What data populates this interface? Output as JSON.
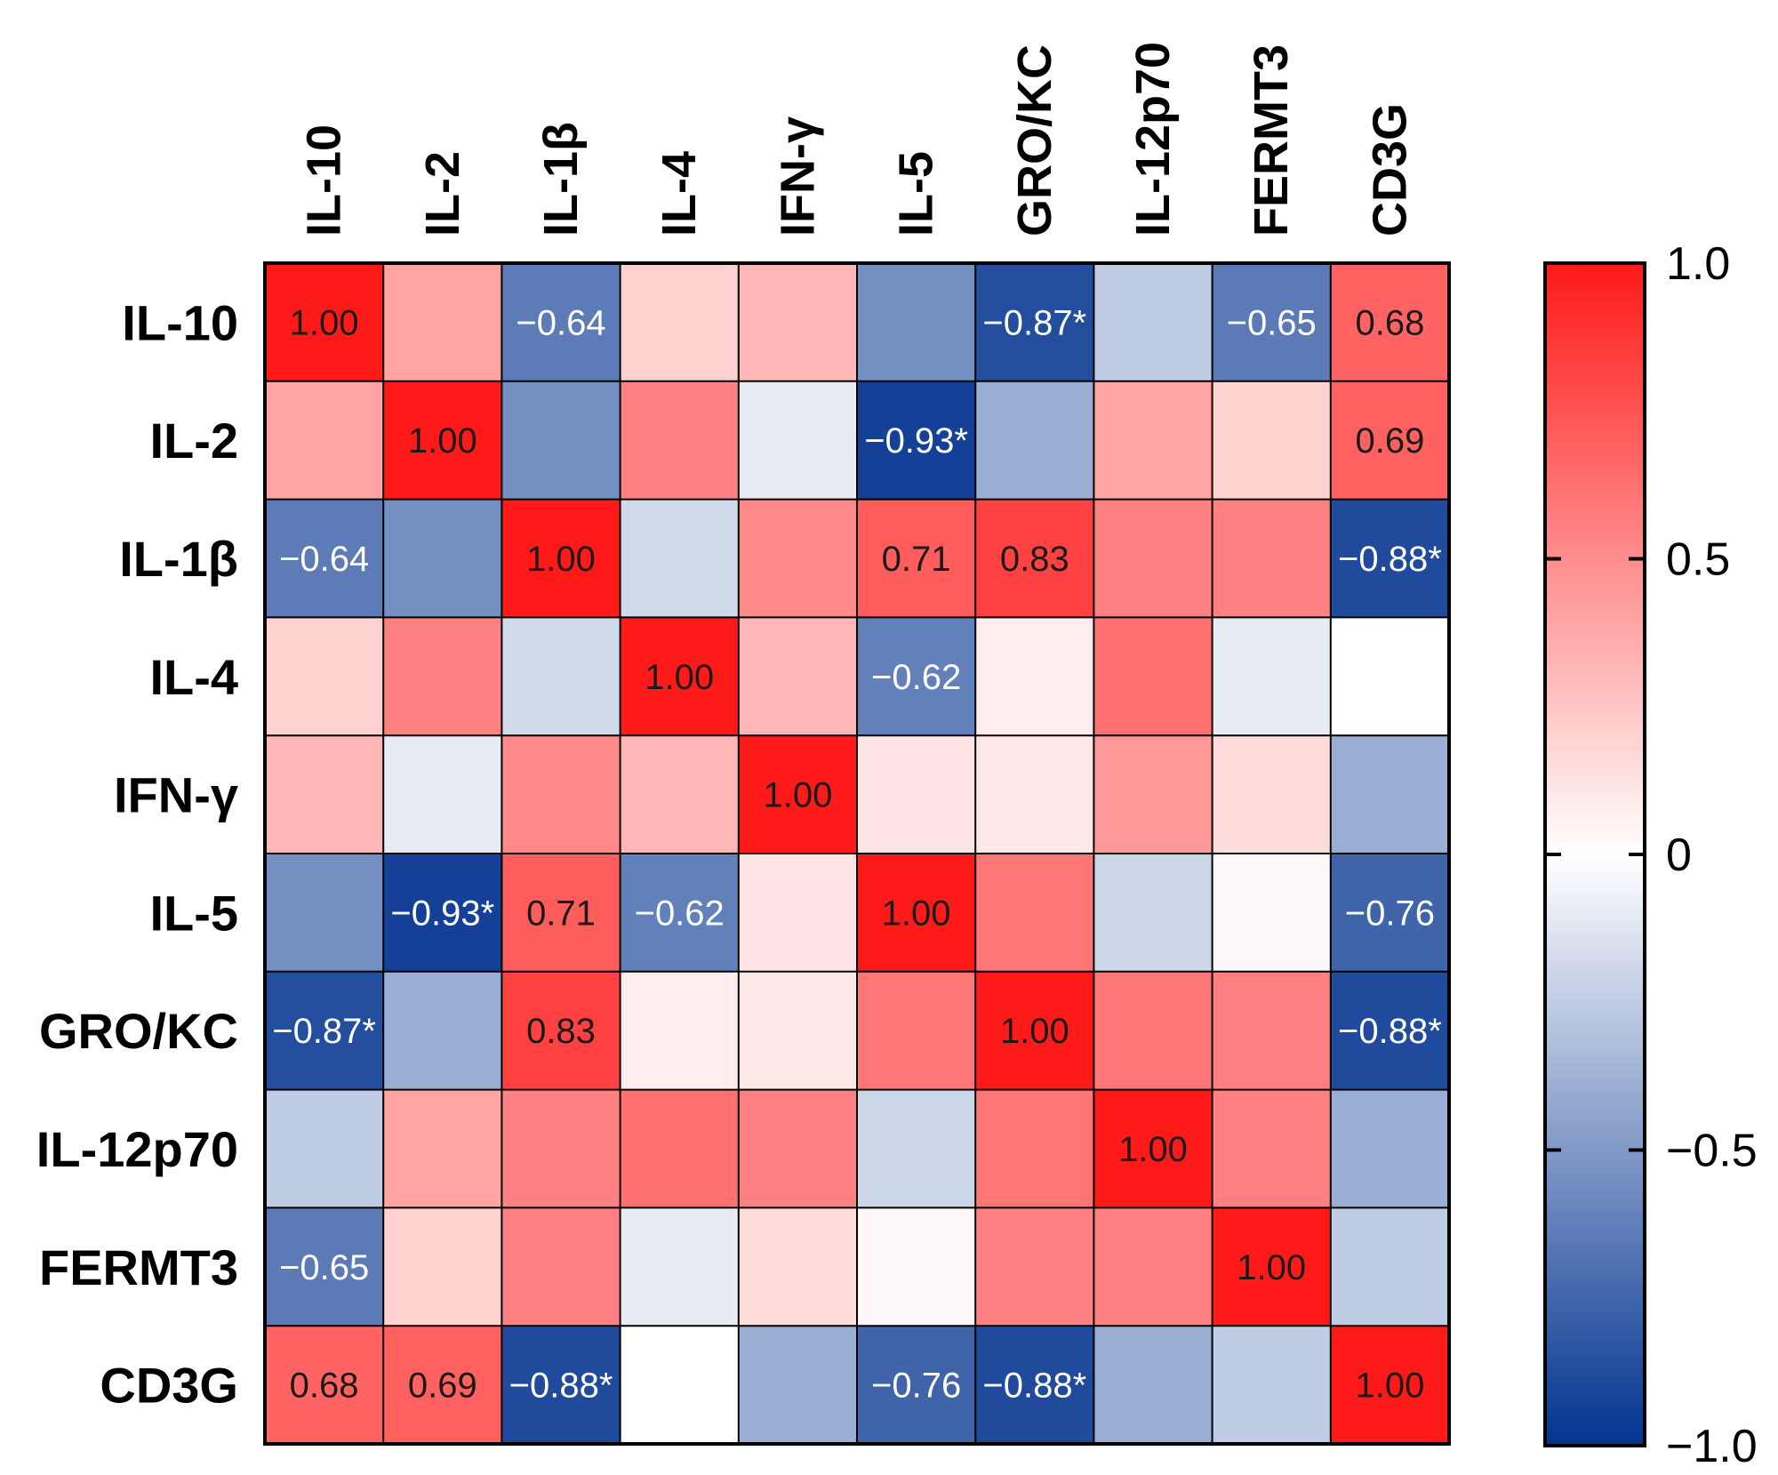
{
  "chart_data": {
    "type": "heatmap",
    "labels": [
      "IL-10",
      "IL-2",
      "IL-1β",
      "IL-4",
      "IFN-γ",
      "IL-5",
      "GRO/KC",
      "IL-12p70",
      "FERMT3",
      "CD3G"
    ],
    "matrix": [
      [
        1.0,
        0.4,
        -0.64,
        0.2,
        0.32,
        -0.55,
        -0.87,
        -0.25,
        -0.65,
        0.68
      ],
      [
        0.4,
        1.0,
        -0.55,
        0.55,
        -0.1,
        -0.93,
        -0.4,
        0.4,
        0.2,
        0.69
      ],
      [
        -0.64,
        -0.55,
        1.0,
        -0.18,
        0.52,
        0.71,
        0.83,
        0.55,
        0.55,
        -0.88
      ],
      [
        0.2,
        0.55,
        -0.18,
        1.0,
        0.32,
        -0.62,
        0.08,
        0.62,
        -0.1,
        0.0
      ],
      [
        0.32,
        -0.1,
        0.52,
        0.32,
        1.0,
        0.12,
        0.1,
        0.45,
        0.15,
        -0.4
      ],
      [
        -0.55,
        -0.93,
        0.71,
        -0.62,
        0.12,
        1.0,
        0.6,
        -0.2,
        0.03,
        -0.76
      ],
      [
        -0.87,
        -0.4,
        0.83,
        0.08,
        0.1,
        0.6,
        1.0,
        0.6,
        0.55,
        -0.88
      ],
      [
        -0.25,
        0.4,
        0.55,
        0.62,
        0.55,
        -0.2,
        0.6,
        1.0,
        0.55,
        -0.4
      ],
      [
        -0.65,
        0.2,
        0.55,
        -0.1,
        0.15,
        0.03,
        0.55,
        0.55,
        1.0,
        -0.25
      ],
      [
        0.68,
        0.69,
        -0.88,
        0.0,
        -0.4,
        -0.76,
        -0.88,
        -0.4,
        -0.25,
        1.0
      ]
    ],
    "annotations": [
      [
        "1.00",
        "",
        "−0.64",
        "",
        "",
        "",
        "−0.87*",
        "",
        "−0.65",
        "0.68"
      ],
      [
        "",
        "1.00",
        "",
        "",
        "",
        "−0.93*",
        "",
        "",
        "",
        "0.69"
      ],
      [
        "−0.64",
        "",
        "1.00",
        "",
        "",
        "0.71",
        "0.83",
        "",
        "",
        "−0.88*"
      ],
      [
        "",
        "",
        "",
        "1.00",
        "",
        "−0.62",
        "",
        "",
        "",
        ""
      ],
      [
        "",
        "",
        "",
        "",
        "1.00",
        "",
        "",
        "",
        "",
        ""
      ],
      [
        "",
        "−0.93*",
        "0.71",
        "−0.62",
        "",
        "1.00",
        "",
        "",
        "",
        "−0.76"
      ],
      [
        "−0.87*",
        "",
        "0.83",
        "",
        "",
        "",
        "1.00",
        "",
        "",
        "−0.88*"
      ],
      [
        "",
        "",
        "",
        "",
        "",
        "",
        "",
        "1.00",
        "",
        ""
      ],
      [
        "−0.65",
        "",
        "",
        "",
        "",
        "",
        "",
        "",
        "1.00",
        ""
      ],
      [
        "0.68",
        "0.69",
        "−0.88*",
        "",
        "",
        "−0.76",
        "−0.88*",
        "",
        "",
        "1.00"
      ]
    ],
    "colorbar": {
      "range": [
        -1.0,
        1.0
      ],
      "ticks": [
        1.0,
        0.5,
        0,
        -0.5,
        -1.0
      ],
      "tick_labels": [
        "1.0",
        "0.5",
        "0",
        "−0.5",
        "−1.0"
      ],
      "colors": {
        "negative": "#02338f",
        "zero": "#ffffff",
        "positive": "#ff1a1a"
      }
    }
  }
}
